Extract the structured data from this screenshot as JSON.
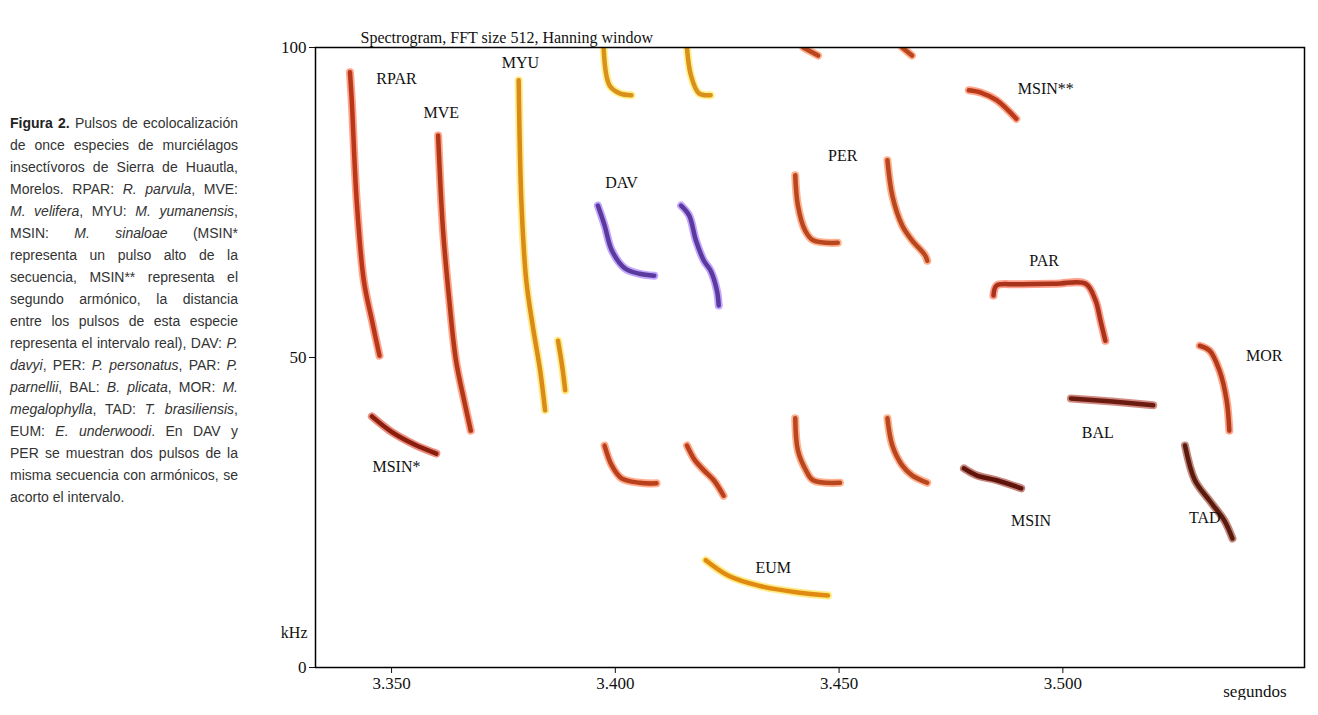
{
  "chart_data": {
    "type": "line",
    "title": "Spectrogram, FFT size 512, Hanning window",
    "x_label": "segundos",
    "y_label": "kHz",
    "xlim": [
      3.333,
      3.554
    ],
    "ylim": [
      0,
      100
    ],
    "xticks": [
      {
        "value": 3.35,
        "label": "3.350"
      },
      {
        "value": 3.4,
        "label": "3.400"
      },
      {
        "value": 3.45,
        "label": "3.450"
      },
      {
        "value": 3.5,
        "label": "3.500"
      }
    ],
    "yticks": [
      0,
      50,
      100
    ],
    "grid": false,
    "series": [
      {
        "name": "RPAR",
        "color": "#b8361a",
        "label_x": 3.3511,
        "label_y": 95.0,
        "x": [
          3.3407,
          3.3411,
          3.3422,
          3.3438,
          3.3456,
          3.3473
        ],
        "values": [
          96,
          91.5,
          75.3,
          62.4,
          56,
          50.3
        ]
      },
      {
        "name": "MSIN*",
        "color": "#8a1e0e",
        "label_x": 3.3511,
        "label_y": 32.3,
        "x": [
          3.3456,
          3.35,
          3.355,
          3.36
        ],
        "values": [
          40.5,
          38,
          36,
          34.5
        ]
      },
      {
        "name": "MVE",
        "color": "#b03818",
        "label_x": 3.3611,
        "label_y": 89.4,
        "x": [
          3.3604,
          3.3615,
          3.3629,
          3.3644,
          3.3662,
          3.3677
        ],
        "values": [
          85.8,
          70.5,
          59.2,
          49.5,
          43.1,
          38.2
        ]
      },
      {
        "name": "MYU",
        "color": "#d98a18",
        "label_x": 3.3788,
        "label_y": 97.6,
        "x": [
          3.3784,
          3.379,
          3.3801,
          3.3817,
          3.3832,
          3.3843,
          null,
          3.3872,
          3.3881,
          3.3888
        ],
        "values": [
          94.7,
          75.3,
          62.4,
          54.4,
          47.9,
          41.5,
          null,
          52.7,
          48.7,
          44.7
        ]
      },
      {
        "name": "DAV",
        "color": "#5b3a9e",
        "label_x": 3.4014,
        "label_y": 78.1,
        "x": [
          3.3961,
          3.3976,
          3.3992,
          3.4021,
          3.4054,
          3.4087,
          null,
          3.3974,
          3.3987,
          3.401,
          3.4036,
          null,
          3.3976,
          3.3992,
          3.4014,
          3.4054,
          3.4092,
          null,
          3.4147,
          3.4165,
          3.418,
          3.4198,
          3.4213,
          3.4227,
          3.4231,
          null,
          3.416,
          3.4169,
          3.4187,
          3.4213,
          null,
          3.416,
          3.4178,
          3.4198,
          3.422,
          3.4242
        ],
        "values": [
          74.5,
          71.3,
          67.3,
          64.4,
          63.5,
          63.2,
          null,
          99.7,
          93.9,
          92.6,
          92.3,
          null,
          35.8,
          32.6,
          30.5,
          29.8,
          29.7,
          null,
          74.5,
          72.9,
          68.9,
          65.6,
          64.0,
          60.8,
          58.4,
          null,
          100,
          95.5,
          92.6,
          92.3,
          null,
          35.8,
          33.4,
          31.8,
          30.2,
          27.7
        ],
        "colors": [
          "#5b3a9e",
          "#5b3a9e",
          "#5b3a9e",
          "#5b3a9e",
          "#5b3a9e",
          "#5b3a9e",
          null,
          "#d9901c",
          "#d9901c",
          "#d9901c",
          "#d9901c",
          null,
          "#b8401c",
          "#b8401c",
          "#b8401c",
          "#b8401c",
          "#b8401c",
          null,
          "#5b3a9e",
          "#5b3a9e",
          "#5b3a9e",
          "#5b3a9e",
          "#5b3a9e",
          "#5b3a9e",
          "#5b3a9e",
          null,
          "#d9901c",
          "#d9901c",
          "#d9901c",
          "#d9901c",
          null,
          "#b8401c",
          "#b8401c",
          "#b8401c",
          "#b8401c",
          "#b8401c"
        ]
      },
      {
        "name": "PER",
        "color": "#b8461e",
        "label_x": 3.4508,
        "label_y": 82.6,
        "x": [
          3.4402,
          3.4408,
          3.4424,
          3.4442,
          3.4497,
          null,
          3.442,
          3.4453,
          null,
          3.4402,
          3.4408,
          3.4426,
          3.4442,
          3.4502,
          null,
          3.4608,
          3.4619,
          3.4641,
          3.4663,
          3.4692,
          3.4697,
          null,
          3.4641,
          3.4663,
          null,
          3.4608,
          3.4619,
          3.4641,
          3.4663,
          3.4697
        ],
        "values": [
          79.4,
          74.5,
          70.5,
          68.9,
          68.5,
          null,
          100,
          98.7,
          null,
          40.2,
          35,
          31.8,
          30.2,
          29.8,
          null,
          81.8,
          76.1,
          71.3,
          68.9,
          66.5,
          65.6,
          null,
          100,
          98.7,
          null,
          40.2,
          35.8,
          32.6,
          31.0,
          29.8
        ]
      },
      {
        "name": "MSIN**",
        "color": "#b83a1a",
        "label_x": 3.4962,
        "label_y": 93.4,
        "x": [
          3.479,
          3.4818,
          3.4852,
          3.4896
        ],
        "values": [
          93.1,
          92.7,
          91.5,
          88.5
        ]
      },
      {
        "name": "PAR",
        "color": "#a8321a",
        "label_x": 3.4958,
        "label_y": 65.6,
        "x": [
          3.4845,
          3.4852,
          3.4896,
          3.4985,
          3.5051,
          3.5073,
          3.5084,
          3.5095
        ],
        "values": [
          60.0,
          61.6,
          61.8,
          61.9,
          61.9,
          59.2,
          56,
          52.7
        ]
      },
      {
        "name": "MSIN",
        "color": "#5e140a",
        "label_x": 3.4929,
        "label_y": 23.7,
        "x": [
          3.4779,
          3.4807,
          3.4852,
          3.4907
        ],
        "values": [
          32.1,
          31.0,
          30.2,
          28.9
        ]
      },
      {
        "name": "BAL",
        "color": "#6b1a10",
        "label_x": 3.5078,
        "label_y": 37.9,
        "x": [
          3.5018,
          3.511,
          3.5202
        ],
        "values": [
          43.4,
          42.9,
          42.3
        ]
      },
      {
        "name": "MOR",
        "color": "#b03a1a",
        "label_x": 3.545,
        "label_y": 50.3,
        "x": [
          3.5306,
          3.5328,
          3.535,
          3.5366,
          3.5372
        ],
        "values": [
          51.9,
          51.1,
          47.9,
          43.1,
          38.2
        ]
      },
      {
        "name": "TAD",
        "color": "#5a1a0e",
        "label_x": 3.5317,
        "label_y": 24.2,
        "x": [
          3.5273,
          3.5295,
          3.5328,
          3.5361,
          3.5379
        ],
        "values": [
          35.8,
          30.2,
          26.9,
          23.7,
          20.8
        ]
      },
      {
        "name": "EUM",
        "color": "#e08a12",
        "label_x": 3.4353,
        "label_y": 16.0,
        "x": [
          3.4202,
          3.4253,
          3.432,
          3.4408,
          3.4475
        ],
        "values": [
          17.3,
          14.8,
          13.2,
          12.1,
          11.6
        ]
      }
    ]
  },
  "caption": [
    {
      "text": "Figura 2.",
      "font": "bold"
    },
    {
      "text": " Pulsos de ecolocalización de once especies de murciélagos insectívoros de Sierra de Huautla, Morelos. RPAR: ",
      "font": "normal"
    },
    {
      "text": "R. parvula",
      "font": "italic"
    },
    {
      "text": ", MVE: ",
      "font": "normal"
    },
    {
      "text": "M. velifera",
      "font": "italic"
    },
    {
      "text": ", MYU: ",
      "font": "normal"
    },
    {
      "text": "M. yumanensis",
      "font": "italic"
    },
    {
      "text": ", MSIN: ",
      "font": "normal"
    },
    {
      "text": "M. sinaloae",
      "font": "italic"
    },
    {
      "text": " (MSIN* representa un pulso alto de la secuencia, MSIN** representa el segundo armónico, la distancia entre los pulsos de esta especie representa el intervalo real), DAV: ",
      "font": "normal"
    },
    {
      "text": "P. davyi",
      "font": "italic"
    },
    {
      "text": ", PER: ",
      "font": "normal"
    },
    {
      "text": "P. personatus",
      "font": "italic"
    },
    {
      "text": ", PAR: ",
      "font": "normal"
    },
    {
      "text": "P. parnellii",
      "font": "italic"
    },
    {
      "text": ", BAL: ",
      "font": "normal"
    },
    {
      "text": "B. plicata",
      "font": "italic"
    },
    {
      "text": ", MOR: ",
      "font": "normal"
    },
    {
      "text": "M. megalophylla",
      "font": "italic"
    },
    {
      "text": ", TAD: ",
      "font": "normal"
    },
    {
      "text": "T. brasiliensis",
      "font": "italic"
    },
    {
      "text": ", EUM: ",
      "font": "normal"
    },
    {
      "text": "E. underwoodi",
      "font": "italic"
    },
    {
      "text": ". En DAV y PER se muestran dos pulsos de la misma secuencia con armónicos, se acorto el intervalo.",
      "font": "normal"
    }
  ]
}
